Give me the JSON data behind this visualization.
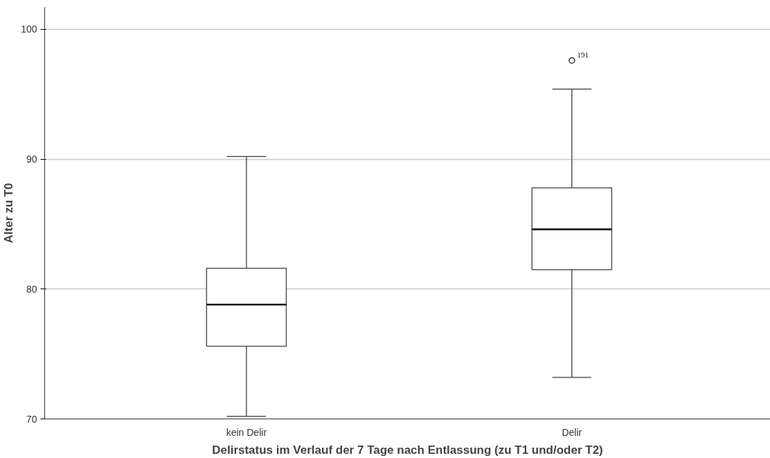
{
  "chart_data": {
    "type": "box",
    "xlabel": "Delirstatus im Verlauf der 7 Tage nach Entlassung (zu T1 und/oder T2)",
    "ylabel": "Alter zu T0",
    "categories": [
      "kein Delir",
      "Delir"
    ],
    "boxes": [
      {
        "low": 70.2,
        "q1": 75.6,
        "median": 78.8,
        "q3": 81.6,
        "high": 90.2
      },
      {
        "low": 73.2,
        "q1": 81.5,
        "median": 84.6,
        "q3": 87.8,
        "high": 95.4,
        "outliers": [
          97.6
        ]
      }
    ],
    "ylim": [
      70,
      101.7
    ],
    "yticks": [
      70,
      80,
      90,
      100
    ],
    "grid": "y",
    "annotations": [
      "191"
    ]
  }
}
